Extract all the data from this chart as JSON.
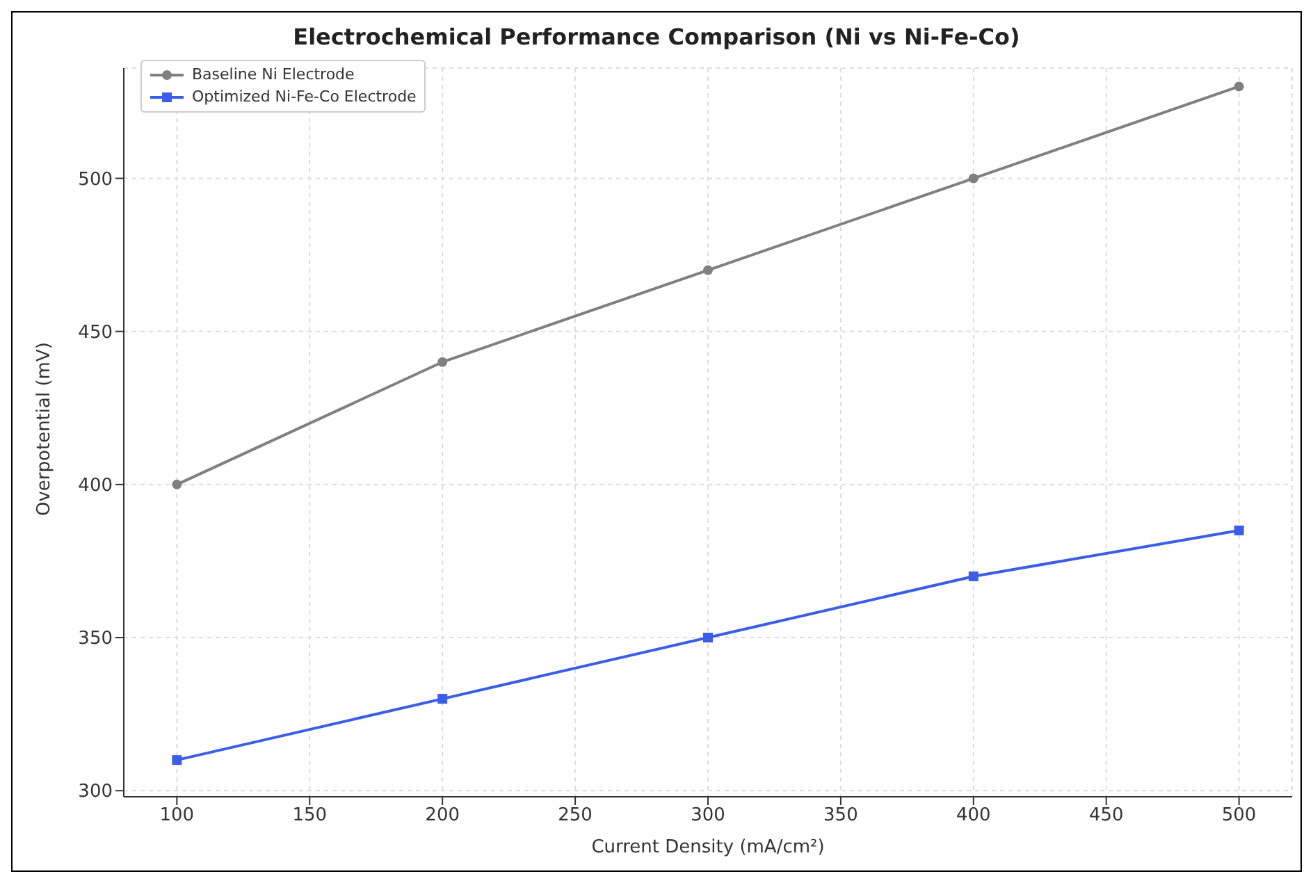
{
  "chart_data": {
    "type": "line",
    "title": "Electrochemical Performance Comparison (Ni vs Ni-Fe-Co)",
    "xlabel": "Current Density (mA/cm²)",
    "ylabel": "Overpotential (mV)",
    "x": [
      100,
      200,
      300,
      400,
      500
    ],
    "series": [
      {
        "name": "Baseline Ni Electrode",
        "color": "#808080",
        "marker": "circle",
        "values": [
          400,
          440,
          470,
          500,
          530
        ]
      },
      {
        "name": "Optimized Ni-Fe-Co Electrode",
        "color": "#3a5ee8",
        "marker": "square",
        "values": [
          310,
          330,
          350,
          370,
          385
        ]
      }
    ],
    "xlim": [
      80,
      520
    ],
    "xticks": [
      100,
      150,
      200,
      250,
      300,
      350,
      400,
      450,
      500
    ],
    "ylim": [
      298,
      536
    ],
    "yticks": [
      300,
      350,
      400,
      450,
      500
    ],
    "grid": true,
    "legend": "top left",
    "line_style": "solid"
  }
}
